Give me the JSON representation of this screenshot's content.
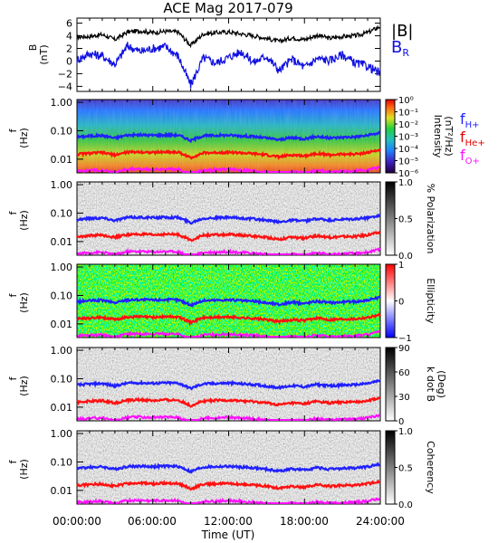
{
  "title": "ACE Mag 2017-079",
  "xaxis": {
    "label": "Time (UT)",
    "ticks": [
      "00:00:00",
      "06:00:00",
      "12:00:00",
      "18:00:00",
      "24:00:00"
    ]
  },
  "legend_b": {
    "b_mag": "|B|",
    "b_r": "B",
    "b_r_sub": "R"
  },
  "legend_f": {
    "f_h": "f",
    "f_h_sub": "H+",
    "f_he": "f",
    "f_he_sub": "He+",
    "f_o": "f",
    "f_o_sub": "O+"
  },
  "colors": {
    "b_mag": "#000000",
    "b_r": "#1010e0",
    "f_h": "#2020ff",
    "f_he": "#ff1010",
    "f_o": "#ff10ff"
  },
  "chart_data": [
    {
      "type": "line",
      "ylabel": "B",
      "yunit": "(nT)",
      "yticks": [
        "6",
        "4",
        "2",
        "0",
        "−2",
        "−4"
      ],
      "ylim": [
        -4.8,
        6.8
      ],
      "series": [
        {
          "name": "|B|",
          "x": [
            0,
            1,
            2,
            3,
            4,
            5,
            6,
            7,
            8,
            9,
            10,
            11,
            12,
            13,
            14,
            15,
            16,
            17,
            18,
            19,
            20,
            21,
            22,
            23,
            24
          ],
          "values": [
            3.8,
            3.9,
            4.2,
            3.4,
            4.6,
            4.8,
            4.5,
            4.7,
            4.6,
            2.5,
            4.3,
            4.5,
            4.6,
            4.3,
            4.0,
            3.6,
            3.1,
            3.7,
            3.4,
            4.1,
            3.6,
            3.9,
            4.0,
            4.5,
            5.5
          ]
        },
        {
          "name": "B",
          "x": [
            0,
            1,
            2,
            3,
            4,
            5,
            6,
            7,
            8,
            9,
            10,
            11,
            12,
            13,
            14,
            15,
            16,
            17,
            18,
            19,
            20,
            21,
            22,
            23,
            24
          ],
          "values": [
            0.2,
            1.2,
            0.8,
            -0.5,
            2.4,
            1.5,
            2.0,
            2.3,
            0.8,
            -3.8,
            0.5,
            -0.3,
            0.6,
            1.5,
            -0.2,
            0.8,
            -1.5,
            0.3,
            -1.0,
            0.4,
            0.1,
            1.0,
            -0.3,
            -0.8,
            -2.0
          ]
        }
      ]
    },
    {
      "type": "heatmap",
      "ylabel": "f",
      "yunit": "(Hz)",
      "yticks": [
        "1.00",
        "0.10",
        "0.01"
      ],
      "colorbar": {
        "label": "Intensity",
        "unit": "(nT²/Hz)",
        "ticks": [
          "10⁰",
          "10⁻¹",
          "10⁻²",
          "10⁻³",
          "10⁻⁴",
          "10⁻⁵",
          "10⁻⁶"
        ]
      }
    },
    {
      "type": "heatmap",
      "ylabel": "f",
      "yunit": "(Hz)",
      "yticks": [
        "1.00",
        "0.10",
        "0.01"
      ],
      "colorbar": {
        "label": "% Polarization",
        "unit": "",
        "ticks": [
          "1.0",
          "0.5",
          "0.0"
        ]
      }
    },
    {
      "type": "heatmap",
      "ylabel": "f",
      "yunit": "(Hz)",
      "yticks": [
        "1.00",
        "0.10",
        "0.01"
      ],
      "colorbar": {
        "label": "Ellipticity",
        "unit": "",
        "ticks": [
          "1",
          "0",
          "−1"
        ]
      }
    },
    {
      "type": "heatmap",
      "ylabel": "f",
      "yunit": "(Hz)",
      "yticks": [
        "1.00",
        "0.10",
        "0.01"
      ],
      "colorbar": {
        "label": "k dot B",
        "unit": "(Deg)",
        "ticks": [
          "90",
          "60",
          "30",
          "0"
        ]
      }
    },
    {
      "type": "heatmap",
      "ylabel": "f",
      "yunit": "(Hz)",
      "yticks": [
        "1.00",
        "0.10",
        "0.01"
      ],
      "colorbar": {
        "label": "Coherency",
        "unit": "",
        "ticks": [
          "1.0",
          "0.5",
          "0.0"
        ]
      }
    }
  ],
  "gyrofrequency_lines": {
    "x": [
      0,
      1,
      2,
      3,
      4,
      5,
      6,
      7,
      8,
      9,
      10,
      11,
      12,
      13,
      14,
      15,
      16,
      17,
      18,
      19,
      20,
      21,
      22,
      23,
      24
    ],
    "f_h": [
      0.06,
      0.065,
      0.068,
      0.055,
      0.07,
      0.071,
      0.069,
      0.071,
      0.07,
      0.045,
      0.066,
      0.068,
      0.07,
      0.066,
      0.062,
      0.055,
      0.048,
      0.057,
      0.052,
      0.063,
      0.055,
      0.059,
      0.061,
      0.068,
      0.085
    ],
    "f_he": [
      0.015,
      0.016,
      0.017,
      0.014,
      0.0175,
      0.018,
      0.017,
      0.018,
      0.0175,
      0.011,
      0.0165,
      0.017,
      0.0175,
      0.0165,
      0.0155,
      0.014,
      0.012,
      0.014,
      0.013,
      0.016,
      0.014,
      0.015,
      0.015,
      0.017,
      0.021
    ],
    "f_o": [
      0.0038,
      0.004,
      0.0042,
      0.0034,
      0.0044,
      0.0045,
      0.0043,
      0.0045,
      0.0044,
      0.0028,
      0.0041,
      0.0042,
      0.0044,
      0.0041,
      0.0039,
      0.0035,
      0.003,
      0.0036,
      0.0033,
      0.004,
      0.0035,
      0.0037,
      0.0038,
      0.0042,
      0.0052
    ]
  }
}
